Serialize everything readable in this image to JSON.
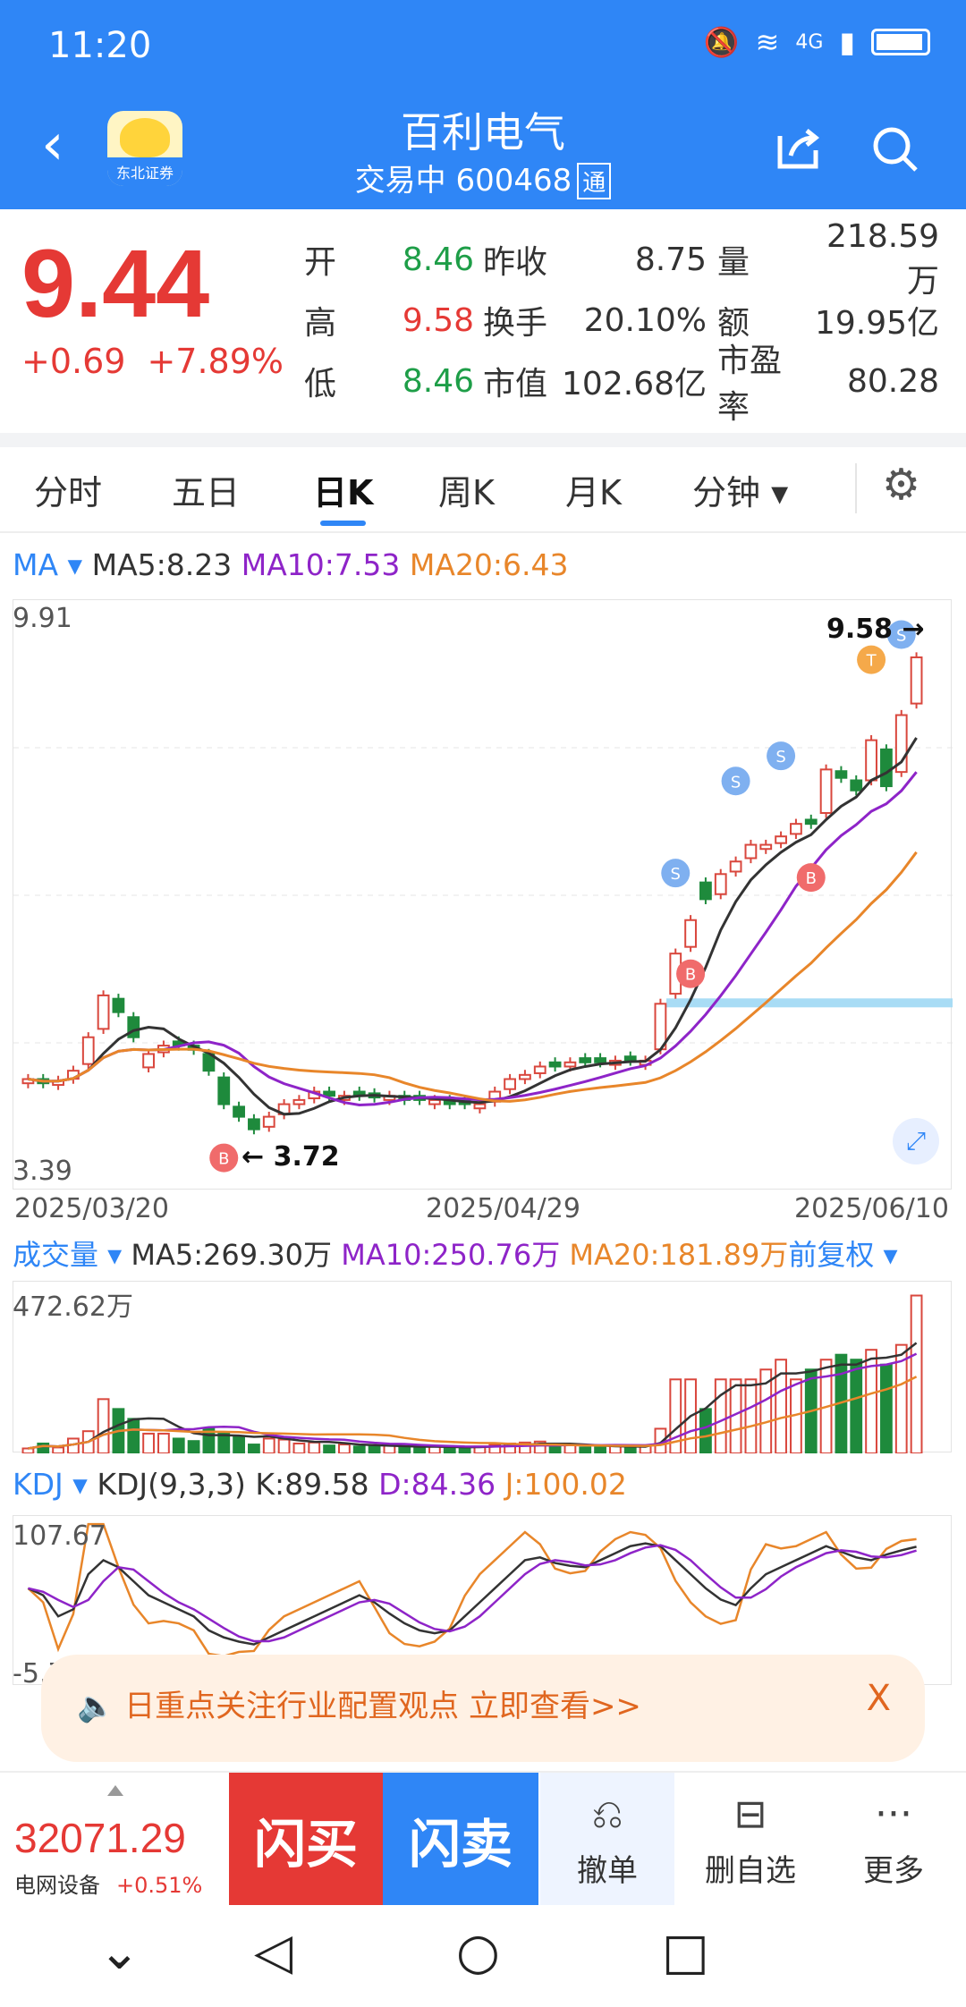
{
  "status": {
    "time": "11:20",
    "network": "4G"
  },
  "header": {
    "title": "百利电气",
    "subtitle": "交易中 600468",
    "tong": "通",
    "logo_text": "东北证券"
  },
  "quote": {
    "price": "9.44",
    "change": "+0.69",
    "change_pct": "+7.89%",
    "rows": [
      [
        "开",
        "8.46",
        "昨收",
        "8.75",
        "量",
        "218.59万"
      ],
      [
        "高",
        "9.58",
        "换手",
        "20.10%",
        "额",
        "19.95亿"
      ],
      [
        "低",
        "8.46",
        "市值",
        "102.68亿",
        "市盈率",
        "80.28"
      ]
    ]
  },
  "tabs": [
    "分时",
    "五日",
    "日K",
    "周K",
    "月K",
    "分钟 ▾"
  ],
  "ma_legend": {
    "label": "MA ▾",
    "ma5": "MA5:8.23",
    "ma10": "MA10:7.53",
    "ma20": "MA20:6.43"
  },
  "kchart": {
    "ymax_label": "9.91",
    "ymin_label": "3.39",
    "high_label": "9.58 →",
    "low_label": "← 3.72",
    "dates": [
      "2025/03/20",
      "2025/04/29",
      "2025/06/10"
    ]
  },
  "vol_legend": {
    "label": "成交量 ▾",
    "ma5": "MA5:269.30万",
    "ma10": "MA10:250.76万",
    "ma20": "MA20:181.89万",
    "adj": "前复权 ▾",
    "max_label": "472.62万"
  },
  "kdj_legend": {
    "label": "KDJ ▾",
    "params": "KDJ(9,3,3)",
    "k": "K:89.58",
    "d": "D:84.36",
    "j": "J:100.02",
    "max_label": "107.67",
    "min_label": "-5.73"
  },
  "banner": {
    "text": "🔈 日重点关注行业配置观点 立即查看>>",
    "close": "X"
  },
  "bottom": {
    "index_value": "32071.29",
    "index_name": "电网设备",
    "index_change": "+0.51%",
    "buy": "闪买",
    "sell": "闪卖",
    "cancel": "撤单",
    "delete": "删自选",
    "more": "更多"
  },
  "chart_data": {
    "type": "candlestick",
    "x_range": [
      "2025/03/20",
      "2025/06/10"
    ],
    "ylim": [
      3.39,
      9.91
    ],
    "high": 9.58,
    "low": 3.72,
    "ma": {
      "MA5": 8.23,
      "MA10": 7.53,
      "MA20": 6.43
    },
    "volume": {
      "max": "472.62万",
      "MA5": "269.30万",
      "MA10": "250.76万",
      "MA20": "181.89万"
    },
    "kdj": {
      "K": 89.58,
      "D": 84.36,
      "J": 100.02,
      "range": [
        -5.73,
        107.67
      ]
    },
    "close": [
      4.4,
      4.35,
      4.38,
      4.5,
      4.9,
      5.4,
      5.2,
      4.9,
      4.7,
      4.8,
      4.8,
      4.75,
      4.5,
      4.1,
      3.95,
      3.8,
      3.95,
      4.1,
      4.15,
      4.25,
      4.2,
      4.2,
      4.2,
      4.18,
      4.2,
      4.15,
      4.15,
      4.15,
      4.1,
      4.1,
      4.1,
      4.25,
      4.4,
      4.45,
      4.55,
      4.55,
      4.6,
      4.6,
      4.6,
      4.62,
      4.62,
      4.62,
      5.3,
      5.9,
      6.3,
      6.55,
      6.85,
      7.0,
      7.2,
      7.2,
      7.3,
      7.45,
      7.45,
      8.1,
      8.0,
      7.85,
      8.45,
      7.9,
      8.75,
      9.44
    ],
    "up": [
      true,
      false,
      true,
      true,
      true,
      true,
      false,
      false,
      true,
      true,
      false,
      false,
      false,
      false,
      false,
      false,
      true,
      true,
      true,
      true,
      false,
      true,
      false,
      false,
      true,
      false,
      false,
      true,
      false,
      false,
      true,
      true,
      true,
      true,
      true,
      false,
      true,
      false,
      false,
      true,
      false,
      true,
      true,
      true,
      true,
      false,
      true,
      true,
      true,
      true,
      true,
      true,
      false,
      true,
      false,
      false,
      true,
      false,
      true,
      true
    ],
    "volumes": [
      10,
      20,
      12,
      30,
      45,
      110,
      90,
      70,
      40,
      40,
      30,
      25,
      50,
      40,
      35,
      18,
      30,
      28,
      20,
      22,
      16,
      18,
      14,
      14,
      16,
      12,
      12,
      14,
      12,
      12,
      14,
      18,
      20,
      22,
      24,
      14,
      18,
      12,
      12,
      16,
      12,
      16,
      50,
      150,
      150,
      90,
      150,
      150,
      150,
      170,
      190,
      150,
      170,
      190,
      200,
      190,
      210,
      180,
      220,
      320
    ],
    "k": [
      60,
      55,
      40,
      45,
      70,
      80,
      75,
      65,
      55,
      50,
      45,
      40,
      30,
      25,
      22,
      20,
      25,
      30,
      35,
      40,
      45,
      50,
      55,
      50,
      42,
      35,
      30,
      28,
      30,
      40,
      50,
      60,
      70,
      80,
      82,
      78,
      76,
      75,
      80,
      85,
      90,
      92,
      90,
      80,
      70,
      60,
      52,
      48,
      60,
      70,
      75,
      80,
      85,
      90,
      86,
      82,
      80,
      84,
      87,
      89.58
    ]
  }
}
